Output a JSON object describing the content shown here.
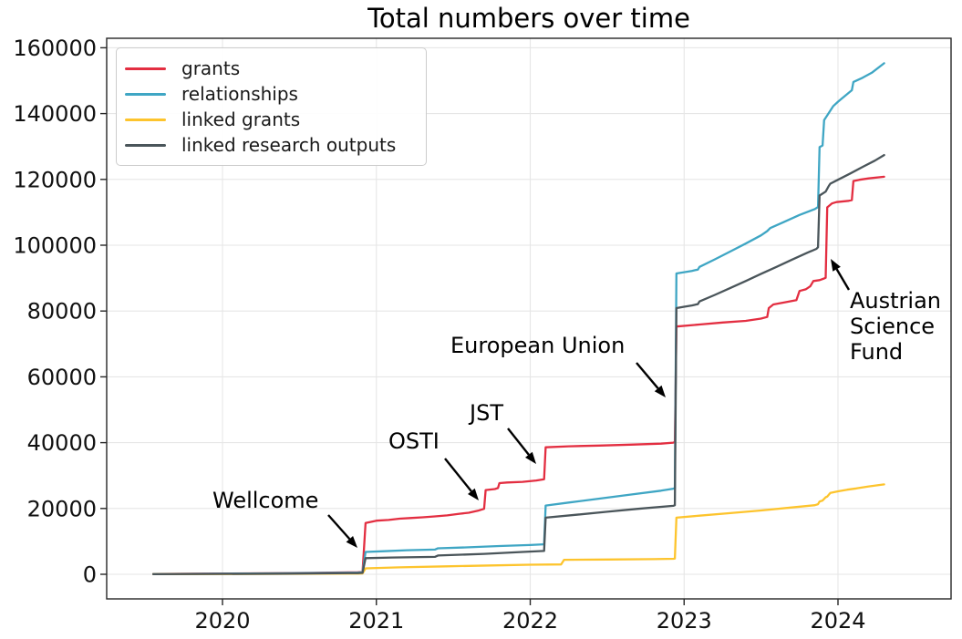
{
  "chart_data": {
    "type": "line",
    "title": "Total numbers over time",
    "xlabel": "",
    "ylabel": "",
    "grid": true,
    "legend_position": "upper left",
    "x_axis": {
      "ticks": [
        2020,
        2021,
        2022,
        2023,
        2024
      ],
      "unit": "year"
    },
    "y_axis": {
      "ticks": [
        0,
        20000,
        40000,
        60000,
        80000,
        100000,
        120000,
        140000,
        160000
      ],
      "range": [
        0,
        160000
      ]
    },
    "series": [
      {
        "name": "grants",
        "color": "#e32e41",
        "points": [
          [
            2019.55,
            100
          ],
          [
            2020.3,
            300
          ],
          [
            2020.6,
            450
          ],
          [
            2020.88,
            600
          ],
          [
            2020.91,
            700
          ],
          [
            2020.93,
            15600
          ],
          [
            2021.0,
            16300
          ],
          [
            2021.08,
            16500
          ],
          [
            2021.15,
            16900
          ],
          [
            2021.22,
            17100
          ],
          [
            2021.3,
            17300
          ],
          [
            2021.38,
            17600
          ],
          [
            2021.46,
            17900
          ],
          [
            2021.54,
            18400
          ],
          [
            2021.6,
            18700
          ],
          [
            2021.66,
            19300
          ],
          [
            2021.7,
            19900
          ],
          [
            2021.71,
            25600
          ],
          [
            2021.77,
            25900
          ],
          [
            2021.79,
            26200
          ],
          [
            2021.8,
            27700
          ],
          [
            2021.85,
            27900
          ],
          [
            2021.95,
            28100
          ],
          [
            2022.04,
            28500
          ],
          [
            2022.09,
            28900
          ],
          [
            2022.1,
            38600
          ],
          [
            2022.25,
            38900
          ],
          [
            2022.45,
            39100
          ],
          [
            2022.65,
            39400
          ],
          [
            2022.85,
            39700
          ],
          [
            2022.93,
            40000
          ],
          [
            2022.94,
            40200
          ],
          [
            2022.95,
            75300
          ],
          [
            2023.1,
            75900
          ],
          [
            2023.25,
            76500
          ],
          [
            2023.4,
            77000
          ],
          [
            2023.5,
            77700
          ],
          [
            2023.54,
            78200
          ],
          [
            2023.55,
            80900
          ],
          [
            2023.58,
            82000
          ],
          [
            2023.66,
            82700
          ],
          [
            2023.73,
            83300
          ],
          [
            2023.75,
            86100
          ],
          [
            2023.79,
            86600
          ],
          [
            2023.82,
            87500
          ],
          [
            2023.84,
            89100
          ],
          [
            2023.88,
            89400
          ],
          [
            2023.91,
            89900
          ],
          [
            2023.92,
            90100
          ],
          [
            2023.93,
            111500
          ],
          [
            2023.96,
            112700
          ],
          [
            2023.99,
            113100
          ],
          [
            2024.07,
            113500
          ],
          [
            2024.09,
            113700
          ],
          [
            2024.1,
            119500
          ],
          [
            2024.14,
            119900
          ],
          [
            2024.2,
            120300
          ],
          [
            2024.3,
            120800
          ]
        ]
      },
      {
        "name": "relationships",
        "color": "#3fa6c4",
        "points": [
          [
            2019.55,
            50
          ],
          [
            2020.4,
            300
          ],
          [
            2020.88,
            500
          ],
          [
            2020.91,
            600
          ],
          [
            2020.93,
            6800
          ],
          [
            2021.05,
            7000
          ],
          [
            2021.2,
            7300
          ],
          [
            2021.38,
            7500
          ],
          [
            2021.4,
            7900
          ],
          [
            2021.6,
            8200
          ],
          [
            2021.8,
            8600
          ],
          [
            2022.0,
            8900
          ],
          [
            2022.09,
            9100
          ],
          [
            2022.1,
            20900
          ],
          [
            2022.25,
            21800
          ],
          [
            2022.45,
            23000
          ],
          [
            2022.65,
            24200
          ],
          [
            2022.85,
            25400
          ],
          [
            2022.93,
            26000
          ],
          [
            2022.94,
            26200
          ],
          [
            2022.95,
            91400
          ],
          [
            2023.0,
            91800
          ],
          [
            2023.05,
            92200
          ],
          [
            2023.09,
            92600
          ],
          [
            2023.1,
            93400
          ],
          [
            2023.2,
            95700
          ],
          [
            2023.3,
            98100
          ],
          [
            2023.4,
            100500
          ],
          [
            2023.5,
            103000
          ],
          [
            2023.54,
            104300
          ],
          [
            2023.56,
            105200
          ],
          [
            2023.65,
            107100
          ],
          [
            2023.75,
            109200
          ],
          [
            2023.85,
            111000
          ],
          [
            2023.87,
            111600
          ],
          [
            2023.88,
            129800
          ],
          [
            2023.9,
            130300
          ],
          [
            2023.91,
            138000
          ],
          [
            2023.97,
            142300
          ],
          [
            2024.0,
            143600
          ],
          [
            2024.02,
            144400
          ],
          [
            2024.08,
            146700
          ],
          [
            2024.09,
            147100
          ],
          [
            2024.1,
            149600
          ],
          [
            2024.16,
            150900
          ],
          [
            2024.22,
            152400
          ],
          [
            2024.3,
            155300
          ]
        ]
      },
      {
        "name": "linked grants",
        "color": "#fdc42d",
        "points": [
          [
            2019.55,
            20
          ],
          [
            2020.5,
            150
          ],
          [
            2020.88,
            220
          ],
          [
            2020.91,
            260
          ],
          [
            2020.93,
            1800
          ],
          [
            2021.15,
            2100
          ],
          [
            2021.45,
            2400
          ],
          [
            2021.75,
            2700
          ],
          [
            2022.0,
            2900
          ],
          [
            2022.2,
            3000
          ],
          [
            2022.22,
            4400
          ],
          [
            2022.5,
            4500
          ],
          [
            2022.8,
            4600
          ],
          [
            2022.93,
            4700
          ],
          [
            2022.94,
            4800
          ],
          [
            2022.95,
            17200
          ],
          [
            2023.1,
            17800
          ],
          [
            2023.3,
            18600
          ],
          [
            2023.5,
            19400
          ],
          [
            2023.7,
            20300
          ],
          [
            2023.85,
            21000
          ],
          [
            2023.87,
            21300
          ],
          [
            2023.88,
            22100
          ],
          [
            2023.9,
            22400
          ],
          [
            2023.92,
            23400
          ],
          [
            2023.93,
            23600
          ],
          [
            2023.95,
            24700
          ],
          [
            2024.0,
            25200
          ],
          [
            2024.06,
            25700
          ],
          [
            2024.12,
            26100
          ],
          [
            2024.2,
            26700
          ],
          [
            2024.3,
            27300
          ]
        ]
      },
      {
        "name": "linked research outputs",
        "color": "#4a555a",
        "points": [
          [
            2019.55,
            30
          ],
          [
            2020.4,
            200
          ],
          [
            2020.88,
            350
          ],
          [
            2020.91,
            430
          ],
          [
            2020.93,
            4900
          ],
          [
            2021.1,
            5100
          ],
          [
            2021.38,
            5300
          ],
          [
            2021.4,
            5700
          ],
          [
            2021.7,
            6200
          ],
          [
            2021.95,
            6800
          ],
          [
            2022.09,
            7100
          ],
          [
            2022.1,
            17200
          ],
          [
            2022.3,
            18100
          ],
          [
            2022.5,
            19000
          ],
          [
            2022.7,
            19900
          ],
          [
            2022.93,
            20800
          ],
          [
            2022.94,
            21000
          ],
          [
            2022.95,
            80900
          ],
          [
            2023.0,
            81300
          ],
          [
            2023.05,
            81700
          ],
          [
            2023.09,
            82100
          ],
          [
            2023.1,
            82900
          ],
          [
            2023.2,
            84900
          ],
          [
            2023.3,
            87000
          ],
          [
            2023.4,
            89100
          ],
          [
            2023.5,
            91300
          ],
          [
            2023.6,
            93400
          ],
          [
            2023.7,
            95600
          ],
          [
            2023.8,
            97700
          ],
          [
            2023.86,
            98900
          ],
          [
            2023.87,
            99400
          ],
          [
            2023.88,
            115100
          ],
          [
            2023.92,
            116300
          ],
          [
            2023.94,
            118000
          ],
          [
            2023.95,
            118700
          ],
          [
            2024.0,
            119900
          ],
          [
            2024.08,
            121800
          ],
          [
            2024.16,
            123800
          ],
          [
            2024.24,
            125700
          ],
          [
            2024.3,
            127400
          ]
        ]
      }
    ],
    "annotations": [
      {
        "label": "Wellcome",
        "arrow": [
          360,
          565,
          392,
          601
        ]
      },
      {
        "label": "OSTI",
        "arrow": [
          488,
          503,
          525,
          549
        ]
      },
      {
        "label": "JST",
        "arrow": [
          557,
          470,
          588,
          509
        ]
      },
      {
        "label": "European Union",
        "arrow": [
          698,
          398,
          730,
          436
        ]
      },
      {
        "label": "Austrian Science Fund",
        "arrow": [
          931,
          318,
          911,
          284
        ]
      }
    ]
  }
}
